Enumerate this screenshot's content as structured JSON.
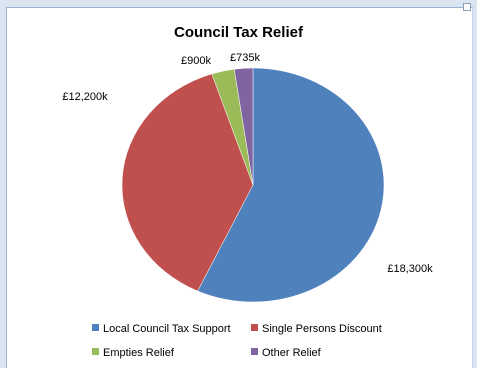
{
  "chart_data": {
    "type": "pie",
    "title": "Council Tax Relief",
    "categories": [
      "Local Council Tax Support",
      "Single Persons Discount",
      "Empties Relief",
      "Other Relief"
    ],
    "values": [
      18300,
      12200,
      900,
      735
    ],
    "value_unit": "£k",
    "data_labels": [
      "£18,300k",
      "£12,200k",
      "£900k",
      "£735k"
    ],
    "colors": [
      "#4f81bd",
      "#c0504d",
      "#9bbb59",
      "#8064a2"
    ],
    "legend_placement": "bottom"
  }
}
